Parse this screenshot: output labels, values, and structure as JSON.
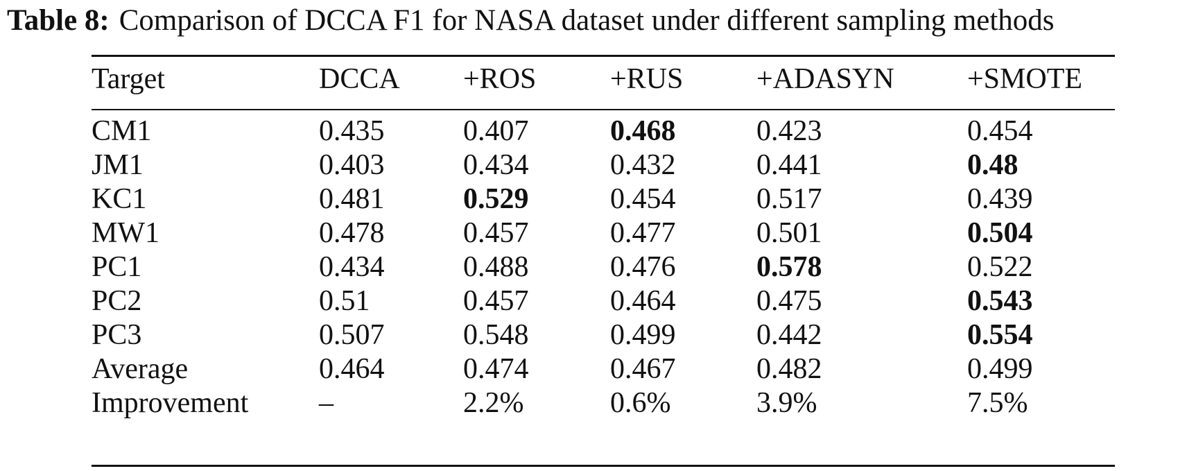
{
  "caption": {
    "label": "Table 8:",
    "text": "Comparison of DCCA F1 for NASA dataset under different sampling methods"
  },
  "table": {
    "headers": [
      "Target",
      "DCCA",
      "+ROS",
      "+RUS",
      "+ADASYN",
      "+SMOTE"
    ],
    "rows": [
      {
        "cells": [
          "CM1",
          "0.435",
          "0.407",
          "0.468",
          "0.423",
          "0.454"
        ],
        "bold_col": 3
      },
      {
        "cells": [
          "JM1",
          "0.403",
          "0.434",
          "0.432",
          "0.441",
          "0.48"
        ],
        "bold_col": 5
      },
      {
        "cells": [
          "KC1",
          "0.481",
          "0.529",
          "0.454",
          "0.517",
          "0.439"
        ],
        "bold_col": 2
      },
      {
        "cells": [
          "MW1",
          "0.478",
          "0.457",
          "0.477",
          "0.501",
          "0.504"
        ],
        "bold_col": 5
      },
      {
        "cells": [
          "PC1",
          "0.434",
          "0.488",
          "0.476",
          "0.578",
          "0.522"
        ],
        "bold_col": 4
      },
      {
        "cells": [
          "PC2",
          "0.51",
          "0.457",
          "0.464",
          "0.475",
          "0.543"
        ],
        "bold_col": 5
      },
      {
        "cells": [
          "PC3",
          "0.507",
          "0.548",
          "0.499",
          "0.442",
          "0.554"
        ],
        "bold_col": 5
      },
      {
        "cells": [
          "Average",
          "0.464",
          "0.474",
          "0.467",
          "0.482",
          "0.499"
        ],
        "bold_col": -1
      },
      {
        "cells": [
          "Improvement",
          "–",
          "2.2%",
          "0.6%",
          "3.9%",
          "7.5%"
        ],
        "bold_col": -1
      }
    ]
  }
}
